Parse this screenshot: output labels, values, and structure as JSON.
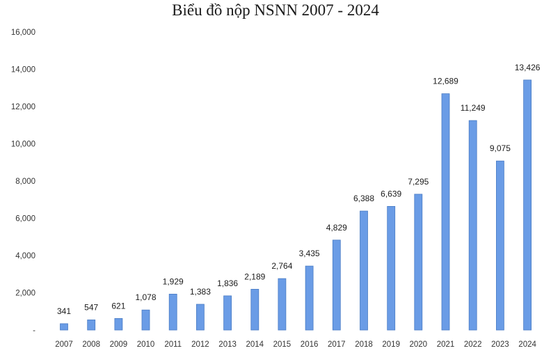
{
  "chart_data": {
    "type": "bar",
    "title": "Biểu đồ nộp NSNN 2007 - 2024",
    "categories": [
      "2007",
      "2008",
      "2009",
      "2010",
      "2011",
      "2012",
      "2013",
      "2014",
      "2015",
      "2016",
      "2017",
      "2018",
      "2019",
      "2020",
      "2021",
      "2022",
      "2023",
      "2024"
    ],
    "values": [
      341,
      547,
      621,
      1078,
      1929,
      1383,
      1836,
      2189,
      2764,
      3435,
      4829,
      6388,
      6639,
      7295,
      12689,
      11249,
      9075,
      13426
    ],
    "data_labels": [
      "341",
      "547",
      "621",
      "1,078",
      "1,929",
      "1,383",
      "1,836",
      "2,189",
      "2,764",
      "3,435",
      "4,829",
      "6,388",
      "6,639",
      "7,295",
      "12,689",
      "11,249",
      "9,075",
      "13,426"
    ],
    "y_ticks": [
      0,
      2000,
      4000,
      6000,
      8000,
      10000,
      12000,
      14000,
      16000
    ],
    "y_tick_labels": [
      "-",
      "2,000",
      "4,000",
      "6,000",
      "8,000",
      "10,000",
      "12,000",
      "14,000",
      "16,000"
    ],
    "ylim": [
      0,
      16000
    ],
    "xlabel": "",
    "ylabel": "",
    "grid": false,
    "bar_color": "#6a9ce6",
    "bar_edge_color": "#4a7cc4"
  }
}
